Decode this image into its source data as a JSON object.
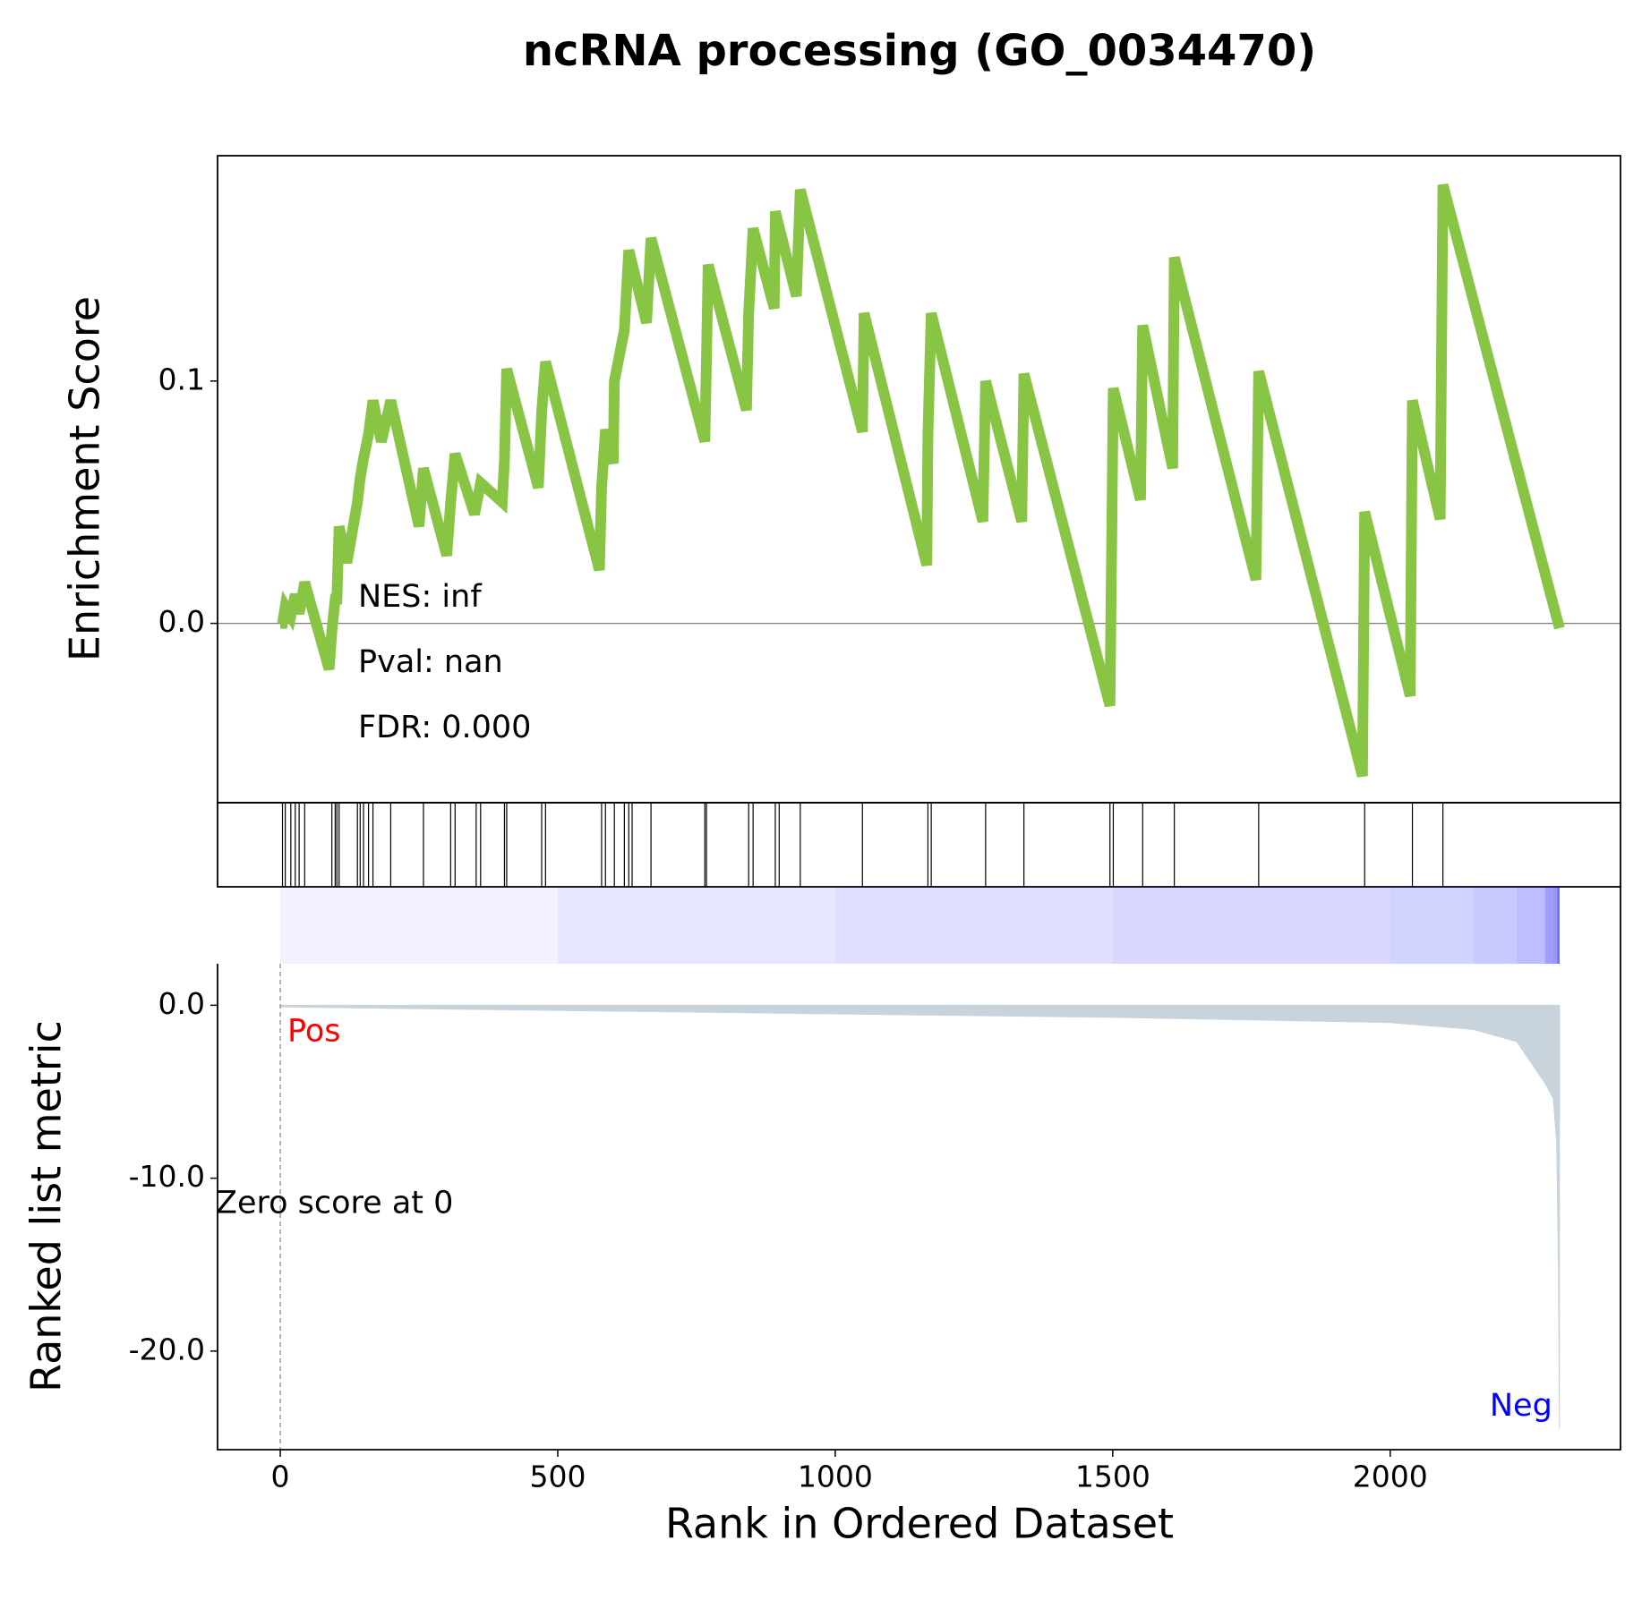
{
  "chart_data": [
    {
      "type": "line",
      "title": "ncRNA processing (GO_0034470)",
      "ylabel": "Enrichment Score",
      "color": "#88c544",
      "x": [
        0,
        4,
        9,
        19,
        27,
        34,
        44,
        88,
        93,
        99,
        102,
        106,
        120,
        139,
        144,
        150,
        159,
        167,
        182,
        199,
        250,
        258,
        300,
        307,
        315,
        350,
        361,
        400,
        404,
        408,
        465,
        471,
        478,
        575,
        579,
        586,
        600,
        602,
        620,
        628,
        660,
        668,
        765,
        768,
        771,
        840,
        844,
        852,
        890,
        892,
        930,
        937,
        1049,
        1052,
        1165,
        1167,
        1173,
        1266,
        1271,
        1336,
        1340,
        1495,
        1498,
        1501,
        1550,
        1554,
        1608,
        1611,
        1758,
        1763,
        1950,
        1954,
        2036,
        2040,
        2090,
        2095,
        2305
      ],
      "values": [
        0,
        0,
        0.007,
        0.003,
        0.012,
        0.004,
        0.017,
        -0.019,
        -0.003,
        0.01,
        0.01,
        0.04,
        0.025,
        0.05,
        0.06,
        0.068,
        0.078,
        0.092,
        0.075,
        0.092,
        0.04,
        0.064,
        0.028,
        0.05,
        0.07,
        0.045,
        0.058,
        0.05,
        0.068,
        0.105,
        0.056,
        0.087,
        0.108,
        0.022,
        0.056,
        0.08,
        0.066,
        0.1,
        0.121,
        0.154,
        0.124,
        0.159,
        0.075,
        0.11,
        0.148,
        0.088,
        0.128,
        0.163,
        0.13,
        0.17,
        0.135,
        0.179,
        0.079,
        0.128,
        0.024,
        0.078,
        0.128,
        0.042,
        0.1,
        0.042,
        0.103,
        -0.034,
        0.03,
        0.097,
        0.051,
        0.123,
        0.064,
        0.151,
        0.018,
        0.104,
        -0.063,
        0.046,
        -0.03,
        0.092,
        0.043,
        0.181,
        -0.002
      ],
      "xlim": [
        -113,
        2415
      ],
      "ylim": [
        -0.074,
        0.193
      ],
      "yticks": [
        {
          "value": 0,
          "label": "0.0"
        },
        0.1
      ],
      "annotations": [
        {
          "text": "NES: inf"
        },
        {
          "text": "Pval: nan"
        },
        {
          "text": "FDR: 0.000"
        }
      ]
    },
    {
      "type": "rug",
      "color": "#000000",
      "xlim": [
        -113,
        2415
      ],
      "x": [
        4,
        9,
        19,
        27,
        34,
        44,
        93,
        99,
        102,
        106,
        139,
        144,
        150,
        159,
        167,
        199,
        258,
        307,
        315,
        353,
        361,
        404,
        408,
        471,
        478,
        579,
        586,
        602,
        620,
        628,
        634,
        668,
        765,
        768,
        844,
        852,
        892,
        899,
        937,
        1049,
        1167,
        1173,
        1271,
        1340,
        1495,
        1501,
        1554,
        1611,
        1763,
        1954,
        2040,
        2095
      ]
    },
    {
      "type": "area",
      "ylabel": "Ranked list metric",
      "xlabel": "Rank in Ordered Dataset",
      "color": "#c9d3dc",
      "heatmap_color": "#0000ff",
      "x": [
        0,
        500,
        1000,
        1500,
        2000,
        2150,
        2228,
        2279,
        2294,
        2300,
        2303,
        2305
      ],
      "values": [
        -0.1,
        -0.3,
        -0.5,
        -0.7,
        -1.0,
        -1.4,
        -2.1,
        -4.5,
        -5.4,
        -8,
        -15,
        -24.5
      ],
      "xlim": [
        -113,
        2415
      ],
      "ylim": [
        -25.7,
        2.4
      ],
      "xticks": [
        0,
        500,
        1000,
        1500,
        2000
      ],
      "yticks": [
        {
          "value": 0,
          "label": "0.0"
        },
        {
          "value": -10,
          "label": "-10.0"
        },
        {
          "value": -20,
          "label": "-20.0"
        }
      ],
      "annotations": [
        {
          "text": "Pos",
          "color": "#ff0000"
        },
        {
          "text": "Neg",
          "color": "#0000ff"
        },
        {
          "text": "Zero score at 0",
          "color": "#000000"
        }
      ]
    }
  ]
}
